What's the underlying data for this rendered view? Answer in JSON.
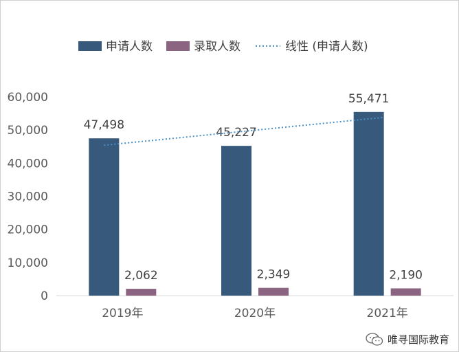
{
  "watermark": {
    "text": "唯寻国际教育",
    "icon": "wechat-icon"
  },
  "chart_data": {
    "type": "bar",
    "title": "",
    "xlabel": "",
    "ylabel": "",
    "categories": [
      "2019年",
      "2020年",
      "2021年"
    ],
    "series": [
      {
        "name": "申请人数",
        "values": [
          47498,
          45227,
          55471
        ],
        "color": "#375a7c"
      },
      {
        "name": "录取人数",
        "values": [
          2062,
          2349,
          2190
        ],
        "color": "#8a6481"
      }
    ],
    "data_labels": [
      [
        "47,498",
        "45,227",
        "55,471"
      ],
      [
        "2,062",
        "2,349",
        "2,190"
      ]
    ],
    "trendline": {
      "name": "线性 (申请人数)",
      "type": "linear",
      "of_series": "申请人数",
      "style": "dotted",
      "color": "#4a90c4"
    },
    "ylim": [
      0,
      60000
    ],
    "yticks": [
      0,
      10000,
      20000,
      30000,
      40000,
      50000,
      60000
    ],
    "ytick_labels": [
      "0",
      "10,000",
      "20,000",
      "30,000",
      "40,000",
      "50,000",
      "60,000"
    ],
    "grid": false,
    "legend": {
      "position": "top"
    }
  }
}
